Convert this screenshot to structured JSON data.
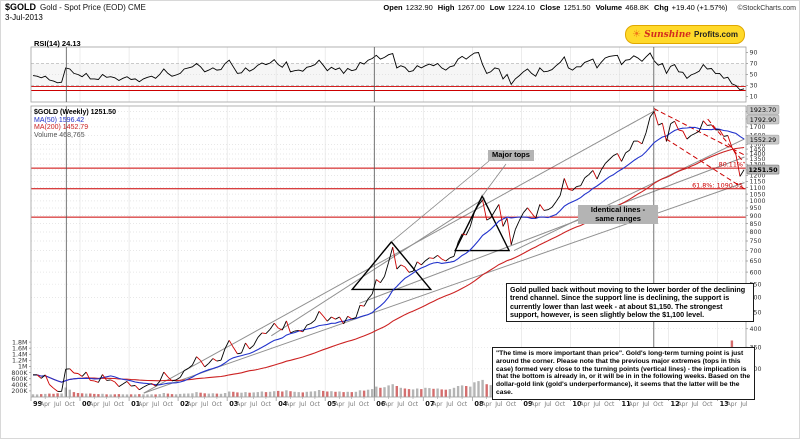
{
  "header": {
    "symbol": "$GOLD",
    "title": "Gold - Spot Price (EOD) CME",
    "date": "3-Jul-2013",
    "source": "©StockCharts.com",
    "quote": {
      "open": {
        "label": "Open",
        "value": "1232.90"
      },
      "high": {
        "label": "High",
        "value": "1267.00"
      },
      "low": {
        "label": "Low",
        "value": "1224.10"
      },
      "close": {
        "label": "Close",
        "value": "1251.50"
      },
      "volume": {
        "label": "Volume",
        "value": "468.8K"
      },
      "chg": {
        "label": "Chg",
        "value": "+19.40 (+1.57%)"
      }
    }
  },
  "branding": {
    "line1": "Sunshine",
    "line2": "Profits.com"
  },
  "rsi_panel": {
    "label": "RSI(14) 24.13"
  },
  "legend": {
    "series": "$GOLD (Weekly) 1251.50",
    "ma50": "MA(50) 1596.42",
    "ma200": "MA(200) 1452.79",
    "volume": "Volume 468,765"
  },
  "annotations": {
    "major_tops": "Major tops",
    "identical_lines": "Identical lines - same ranges",
    "note1": "Gold pulled back without moving to the lower border of the declining trend channel.  Since the support line is declining, the support is currently lower than last week - at about $1,150. The strongest support, however, is seen slightly below the $1,100 level.",
    "note2": "\"The time is more important than price\". Gold's long-term turning point is just around the corner. Please note that the previous major extremes (tops in this case) formed very close to the turning points (vertical lines) - the implication is that the bottom is already in, or it will be in in the following weeks. Based on the dollar-gold link (gold's underperformance), it seems that the latter will be the case."
  },
  "colors": {
    "accent_red": "#cc0000",
    "ma50_blue": "#2233cc",
    "ma200_red": "#cc2222",
    "gray_line": "#909090",
    "flag_gray": "#c8c8c8",
    "badge_yellow": "#ffd92a"
  },
  "chart_data": {
    "type": "line",
    "title": "$GOLD Gold - Spot Price (EOD) CME (Weekly, 1999-2013)",
    "sampling": "monthly",
    "x_range": [
      1999.0,
      2013.58
    ],
    "x_axis": {
      "years": [
        "99",
        "00",
        "01",
        "02",
        "03",
        "04",
        "05",
        "06",
        "07",
        "08",
        "09",
        "10",
        "11",
        "12",
        "13"
      ],
      "quarter_labels": [
        "Apr",
        "Jul",
        "Oct"
      ]
    },
    "price_axis": {
      "scale": "log",
      "range": [
        245,
        1975
      ],
      "ticks": [
        300,
        350,
        400,
        450,
        500,
        550,
        600,
        650,
        700,
        750,
        800,
        850,
        900,
        950,
        1000,
        1050,
        1100,
        1150,
        1200,
        1250,
        1300,
        1350,
        1400,
        1450,
        1500,
        1600,
        1700,
        1800,
        1900
      ]
    },
    "rsi_axis": {
      "range": [
        0,
        100
      ],
      "ticks": [
        90,
        70,
        50,
        30,
        10
      ],
      "overbought": 70,
      "oversold": 30,
      "custom_levels": [
        28,
        21
      ]
    },
    "volume_axis": {
      "max_k": 1900,
      "ticks": [
        {
          "label": "1.8M",
          "k": 1800
        },
        {
          "label": "1.6M",
          "k": 1600
        },
        {
          "label": "1.4M",
          "k": 1400
        },
        {
          "label": "1.2M",
          "k": 1200
        },
        {
          "label": "1M",
          "k": 1000
        },
        {
          "label": "800K",
          "k": 800
        },
        {
          "label": "600K",
          "k": 600
        },
        {
          "label": "400K",
          "k": 400
        },
        {
          "label": "200K",
          "k": 200
        }
      ]
    },
    "series": {
      "price": [
        287,
        287,
        280,
        287,
        268,
        261,
        255,
        255,
        299,
        300,
        291,
        290,
        284,
        293,
        276,
        275,
        272,
        288,
        276,
        277,
        273,
        264,
        269,
        274,
        265,
        266,
        258,
        263,
        267,
        270,
        265,
        274,
        293,
        283,
        275,
        277,
        282,
        296,
        301,
        308,
        327,
        318,
        304,
        312,
        323,
        317,
        319,
        347,
        368,
        350,
        334,
        336,
        361,
        346,
        355,
        375,
        388,
        386,
        398,
        416,
        402,
        396,
        423,
        388,
        393,
        395,
        391,
        410,
        415,
        425,
        453,
        438,
        422,
        435,
        428,
        435,
        414,
        437,
        429,
        433,
        473,
        470,
        495,
        513,
        569,
        556,
        582,
        644,
        718,
        613,
        632,
        623,
        599,
        604,
        646,
        632,
        651,
        665,
        662,
        677,
        659,
        650,
        665,
        672,
        743,
        789,
        783,
        833,
        923,
        971,
        1005,
        871,
        885,
        930,
        975,
        833,
        884,
        730,
        814,
        869,
        919,
        952,
        916,
        883,
        975,
        934,
        939,
        955,
        995,
        1040,
        1175,
        1087,
        1078,
        1108,
        1115,
        1179,
        1207,
        1244,
        1169,
        1246,
        1307,
        1346,
        1383,
        1405,
        1327,
        1411,
        1439,
        1535,
        1536,
        1505,
        1628,
        1826,
        1900,
        1722,
        1746,
        1531,
        1738,
        1770,
        1662,
        1651,
        1558,
        1598,
        1622,
        1648,
        1776,
        1719,
        1726,
        1664,
        1664,
        1588,
        1598,
        1469,
        1394,
        1192,
        1251
      ],
      "rsi": [
        48,
        47,
        44,
        47,
        40,
        38,
        35,
        36,
        62,
        60,
        52,
        50,
        46,
        52,
        42,
        42,
        41,
        50,
        45,
        46,
        44,
        39,
        43,
        46,
        41,
        42,
        37,
        42,
        45,
        47,
        43,
        50,
        60,
        52,
        47,
        49,
        52,
        60,
        62,
        64,
        70,
        64,
        55,
        58,
        62,
        58,
        59,
        70,
        76,
        64,
        52,
        53,
        62,
        56,
        60,
        67,
        71,
        68,
        71,
        77,
        68,
        63,
        73,
        55,
        57,
        58,
        56,
        63,
        65,
        68,
        76,
        67,
        57,
        63,
        59,
        62,
        52,
        61,
        57,
        59,
        72,
        69,
        76,
        79,
        85,
        78,
        81,
        86,
        88,
        62,
        66,
        63,
        55,
        57,
        66,
        62,
        66,
        69,
        66,
        70,
        62,
        58,
        64,
        66,
        78,
        83,
        78,
        84,
        89,
        90,
        68,
        52,
        55,
        62,
        60,
        42,
        50,
        32,
        42,
        48,
        55,
        60,
        52,
        47,
        62,
        55,
        56,
        59,
        66,
        72,
        82,
        62,
        58,
        64,
        64,
        72,
        75,
        78,
        62,
        72,
        80,
        83,
        84,
        85,
        68,
        76,
        77,
        84,
        80,
        74,
        82,
        89,
        75,
        67,
        70,
        52,
        65,
        68,
        55,
        54,
        43,
        49,
        52,
        56,
        68,
        60,
        61,
        52,
        52,
        43,
        45,
        33,
        30,
        22,
        24
      ],
      "volume_k": [
        90,
        85,
        95,
        100,
        110,
        105,
        120,
        115,
        310,
        240,
        160,
        130,
        120,
        110,
        115,
        100,
        95,
        105,
        90,
        85,
        90,
        95,
        90,
        85,
        90,
        85,
        95,
        90,
        85,
        90,
        85,
        95,
        130,
        110,
        95,
        90,
        100,
        110,
        115,
        120,
        160,
        140,
        120,
        110,
        120,
        110,
        105,
        130,
        180,
        170,
        150,
        140,
        160,
        140,
        150,
        160,
        180,
        160,
        170,
        190,
        200,
        180,
        220,
        190,
        170,
        160,
        150,
        170,
        180,
        190,
        230,
        200,
        180,
        190,
        170,
        180,
        160,
        170,
        160,
        170,
        220,
        210,
        240,
        260,
        340,
        300,
        320,
        380,
        420,
        360,
        300,
        280,
        260,
        250,
        280,
        260,
        300,
        290,
        270,
        280,
        250,
        240,
        260,
        300,
        360,
        380,
        360,
        340,
        480,
        520,
        560,
        420,
        390,
        420,
        450,
        480,
        560,
        640,
        480,
        420,
        460,
        480,
        420,
        380,
        480,
        400,
        380,
        390,
        440,
        480,
        560,
        440,
        420,
        460,
        440,
        480,
        560,
        520,
        440,
        480,
        520,
        540,
        560,
        480,
        520,
        560,
        540,
        620,
        680,
        560,
        640,
        860,
        820,
        660,
        640,
        700,
        640,
        600,
        560,
        520,
        600,
        520,
        480,
        460,
        640,
        560,
        540,
        580,
        560,
        520,
        540,
        1850,
        1100,
        1500,
        900
      ]
    },
    "overlays": {
      "ma50_window_months": 12,
      "ma200_window_months": 46,
      "gray_trendlines": [
        [
          2001.3,
          252,
          2013.55,
          1140
        ],
        [
          2001.3,
          252,
          2011.75,
          1920
        ],
        [
          2003.9,
          380,
          2008.25,
          1020
        ],
        [
          2005.7,
          480,
          2013.55,
          1370
        ],
        [
          2008.85,
          700,
          2013.55,
          1560
        ]
      ],
      "red_dashed_trendlines": [
        [
          2011.7,
          1940,
          2013.55,
          1390
        ],
        [
          2011.95,
          1560,
          2013.55,
          1090
        ],
        [
          2012.8,
          1798,
          2013.55,
          1310
        ]
      ],
      "red_support_levels": [
        1264.96,
        1090.35,
        890
      ],
      "turning_point_verticals": [
        1999.72,
        2006.0,
        2011.7
      ],
      "black_triangles": [
        [
          2005.55,
          530,
          2006.35,
          745,
          2007.15,
          530
        ],
        [
          2007.65,
          700,
          2008.2,
          1035,
          2008.75,
          700
        ]
      ]
    },
    "price_flags": [
      {
        "label": "1923.70",
        "price": 1923.7
      },
      {
        "label": "1792.90",
        "price": 1792.9
      },
      {
        "label": "1552.29",
        "price": 1552.29
      }
    ],
    "current_price_flag": {
      "label": "1251.50",
      "price": 1251.5
    },
    "fib_labels": [
      {
        "text": "80.11%",
        "price": 1264.96
      },
      {
        "text": "61.8%: 1090.35",
        "price": 1090.35
      }
    ]
  }
}
